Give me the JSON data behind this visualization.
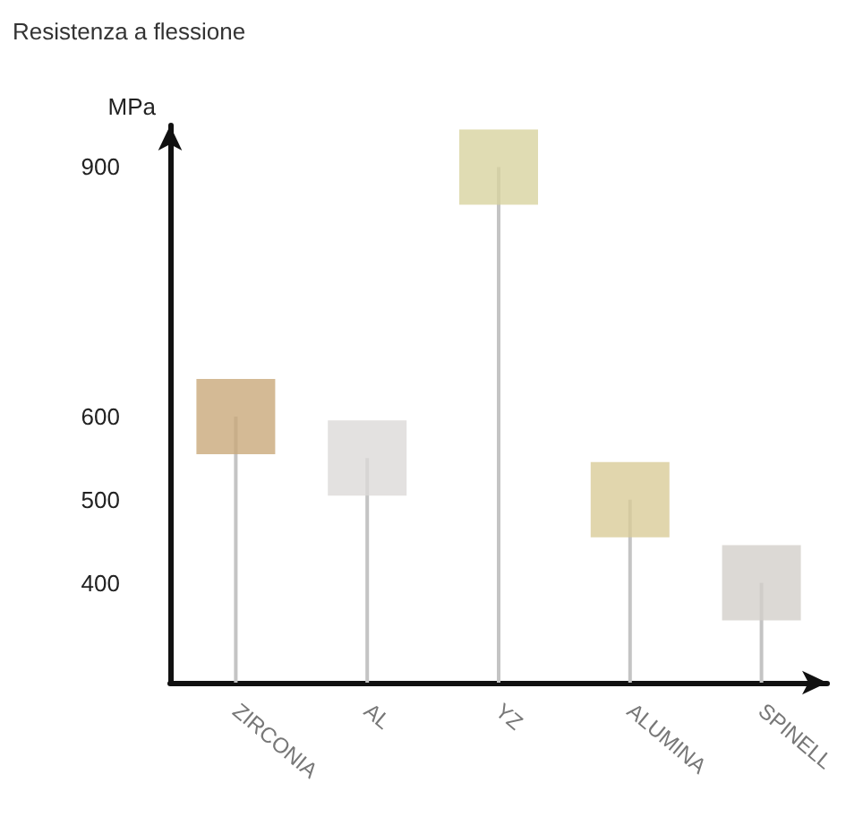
{
  "chart_data": {
    "type": "lollipop",
    "title": "Resistenza a flessione",
    "ylabel": "MPa",
    "categories": [
      "ZIRCONIA",
      "AL",
      "YZ",
      "ALUMINA",
      "SPINELL"
    ],
    "values": [
      600,
      550,
      900,
      500,
      400
    ],
    "color": "#c4c4c4",
    "colors": [
      "#c9a97a",
      "#dcdad8",
      "#d8d3a0",
      "#d9cc98",
      "#d3cfcb"
    ],
    "ylim": [
      280,
      950
    ],
    "yticks": [
      400,
      500,
      600,
      900
    ],
    "grid": false,
    "marker": "square"
  }
}
